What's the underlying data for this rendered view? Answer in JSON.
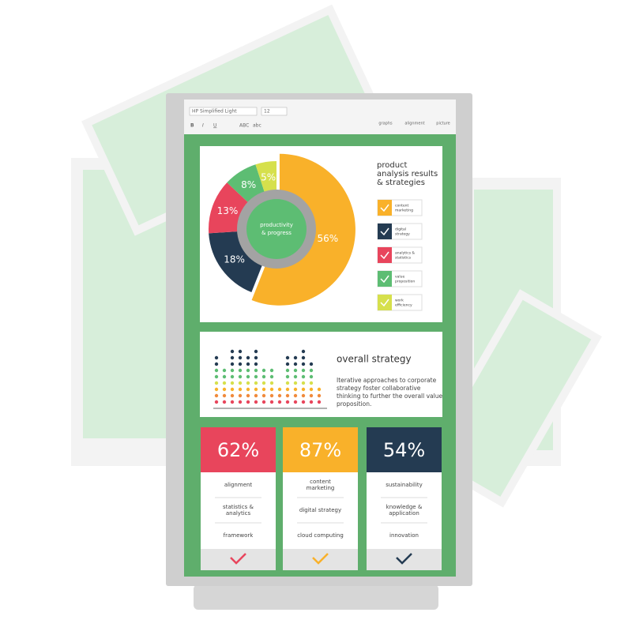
{
  "toolbar": {
    "font": "HP Simplified Light",
    "size": "12",
    "buttons": [
      "B",
      "I",
      "U",
      "ABC",
      "abc"
    ],
    "groups": [
      "graphs",
      "alignment",
      "picture"
    ]
  },
  "analysis": {
    "title": [
      "product",
      "analysis results",
      "& strategies"
    ],
    "center_label": [
      "productivity",
      "& progress"
    ],
    "slices": [
      {
        "value": 56,
        "label": "56%",
        "color": "#f9b12a"
      },
      {
        "value": 18,
        "label": "18%",
        "color": "#243b52"
      },
      {
        "value": 13,
        "label": "13%",
        "color": "#e8455c"
      },
      {
        "value": 8,
        "label": "8%",
        "color": "#5dbd73"
      },
      {
        "value": 5,
        "label": "5%",
        "color": "#d6e04c"
      }
    ],
    "legend": [
      {
        "label": [
          "content",
          "marketing"
        ],
        "color": "#f9b12a"
      },
      {
        "label": [
          "digital",
          "strategy"
        ],
        "color": "#243b52"
      },
      {
        "label": [
          "analytics &",
          "statistics"
        ],
        "color": "#e8455c"
      },
      {
        "label": [
          "value",
          "proposition"
        ],
        "color": "#5dbd73"
      },
      {
        "label": [
          "work",
          "efficiency"
        ],
        "color": "#d6e04c"
      }
    ]
  },
  "strategy": {
    "title": "overall strategy",
    "text": [
      "Iterative approaches to corporate",
      "strategy foster collaborative",
      "thinking to further the overall value",
      "proposition."
    ]
  },
  "cards": [
    {
      "percent": "62%",
      "color": "#e8455c",
      "items": [
        [
          "alignment"
        ],
        [
          "statistics &",
          "analytics"
        ],
        [
          "framework"
        ]
      ]
    },
    {
      "percent": "87%",
      "color": "#f9b12a",
      "items": [
        [
          "content",
          "marketing"
        ],
        [
          "digital strategy"
        ],
        [
          "cloud computing"
        ]
      ]
    },
    {
      "percent": "54%",
      "color": "#243b52",
      "items": [
        [
          "sustainability"
        ],
        [
          "knowledge &",
          "application"
        ],
        [
          "innovation"
        ]
      ]
    }
  ]
}
